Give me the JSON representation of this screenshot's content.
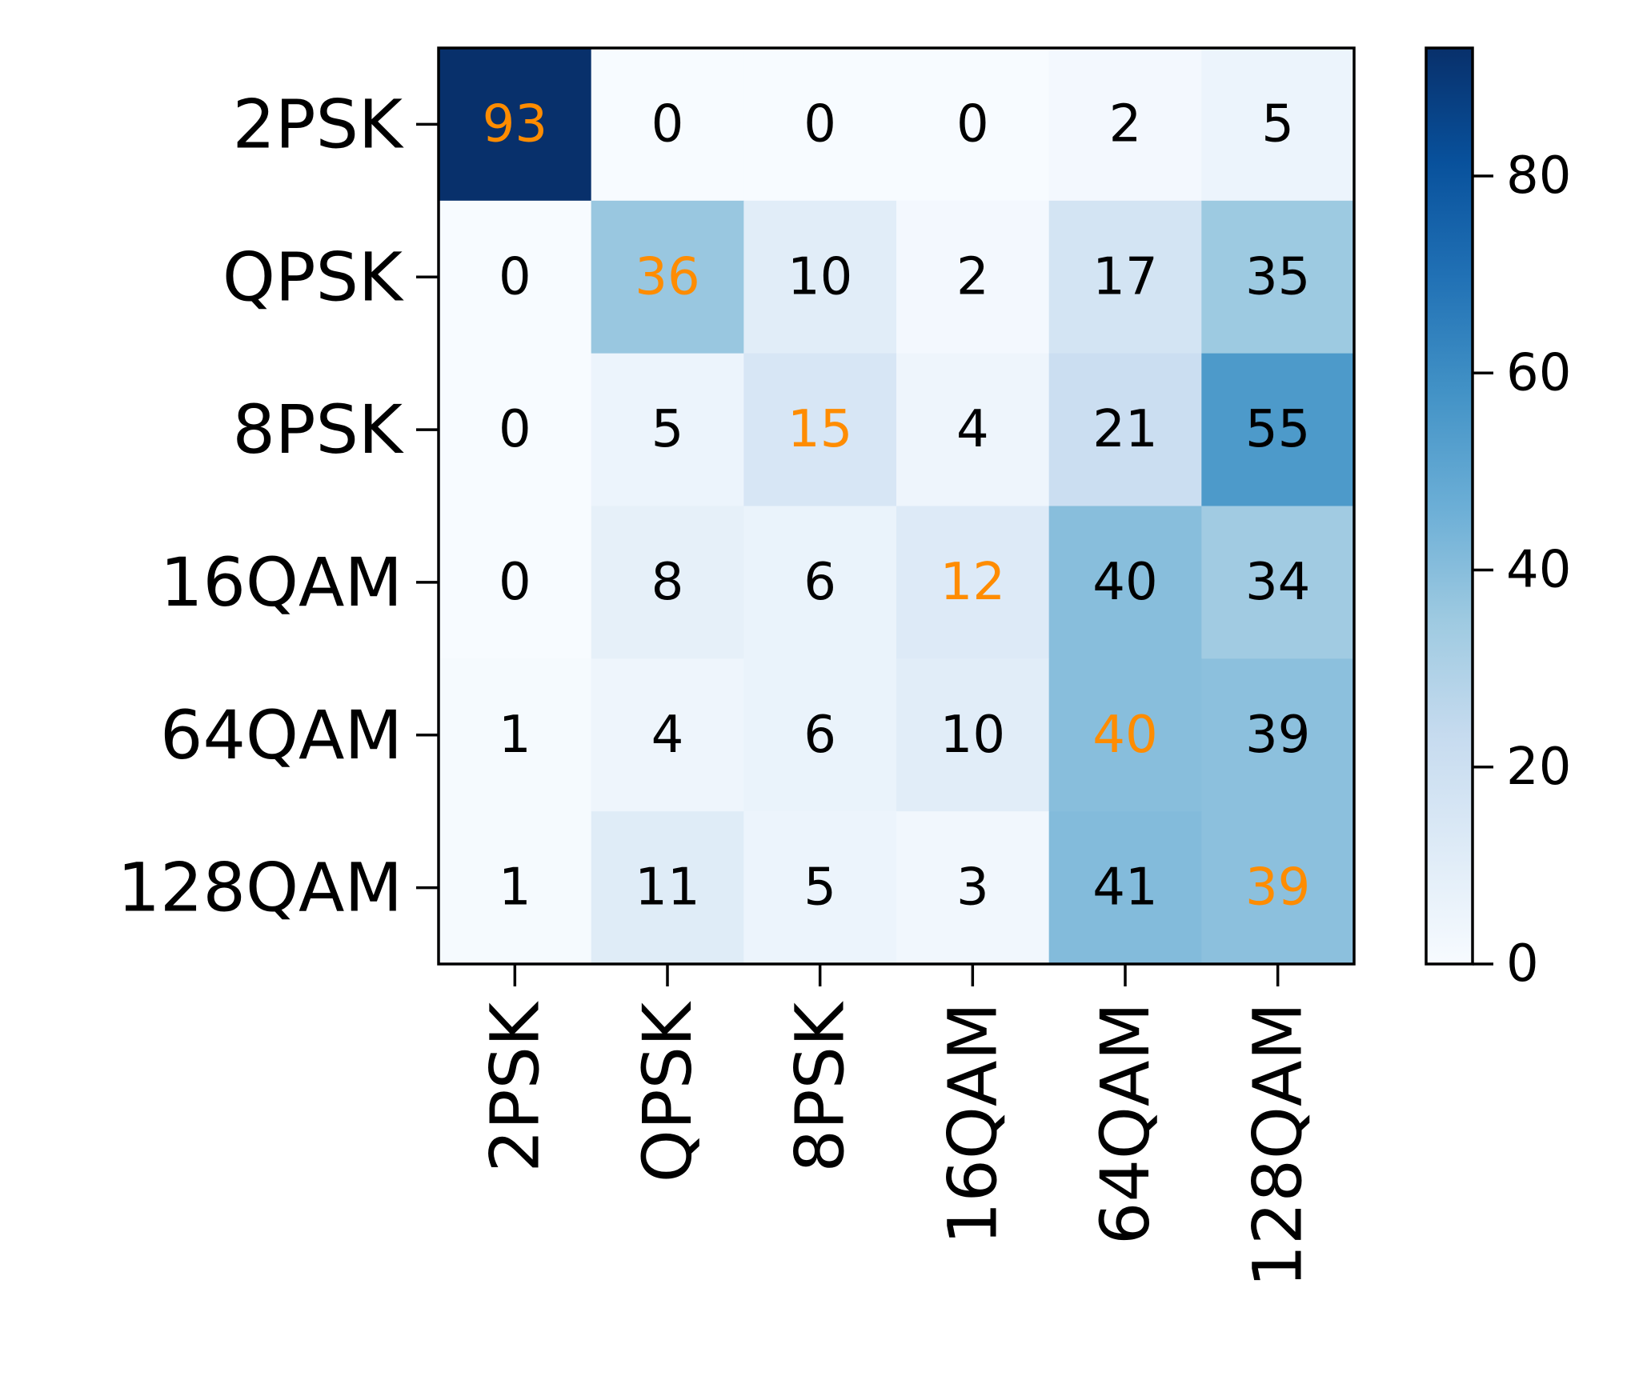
{
  "chart_data": {
    "type": "heatmap",
    "title": "",
    "xlabel": "",
    "ylabel": "",
    "row_labels": [
      "2PSK",
      "QPSK",
      "8PSK",
      "16QAM",
      "64QAM",
      "128QAM"
    ],
    "col_labels": [
      "2PSK",
      "QPSK",
      "8PSK",
      "16QAM",
      "64QAM",
      "128QAM"
    ],
    "values": [
      [
        93,
        0,
        0,
        0,
        2,
        5
      ],
      [
        0,
        36,
        10,
        2,
        17,
        35
      ],
      [
        0,
        5,
        15,
        4,
        21,
        55
      ],
      [
        0,
        8,
        6,
        12,
        40,
        34
      ],
      [
        1,
        4,
        6,
        10,
        40,
        39
      ],
      [
        1,
        11,
        5,
        3,
        41,
        39
      ]
    ],
    "colormap": "Blues",
    "value_range": [
      0,
      93
    ],
    "colorbar": {
      "ticks": [
        0,
        20,
        40,
        60,
        80
      ],
      "tick_labels": [
        "0",
        "20",
        "40",
        "60",
        "80"
      ]
    },
    "diagonal_text_color": "#ff8c00",
    "text_color": "#000000",
    "x_tick_rotation": 90,
    "grid": false
  }
}
